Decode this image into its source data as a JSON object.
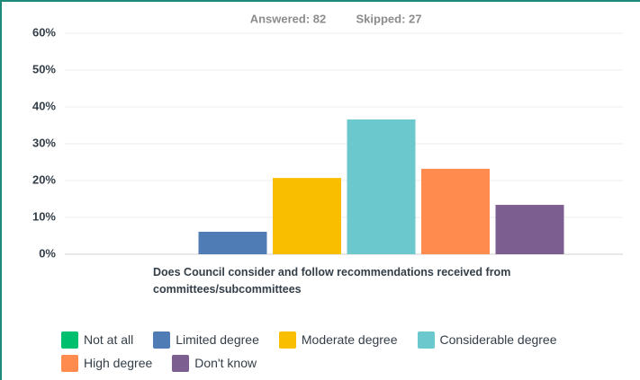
{
  "chart_data": {
    "type": "bar",
    "answered": "Answered: 82",
    "skipped": "Skipped: 27",
    "categories": [
      "Does Council consider and follow recommendations received from committees/subcommittees"
    ],
    "series": [
      {
        "name": "Not at all",
        "color": "#00bf6f",
        "values": [
          0
        ]
      },
      {
        "name": "Limited degree",
        "color": "#507cb6",
        "values": [
          6.1
        ]
      },
      {
        "name": "Moderate degree",
        "color": "#f9be00",
        "values": [
          20.7
        ]
      },
      {
        "name": "Considerable degree",
        "color": "#6bc8cd",
        "values": [
          36.6
        ]
      },
      {
        "name": "High degree",
        "color": "#ff8b4f",
        "values": [
          23.2
        ]
      },
      {
        "name": "Don't know",
        "color": "#7d5e90",
        "values": [
          13.4
        ]
      }
    ],
    "ylim": [
      0,
      60
    ],
    "yticks": [
      {
        "value": 0,
        "label": "0%"
      },
      {
        "value": 10,
        "label": "10%"
      },
      {
        "value": 20,
        "label": "20%"
      },
      {
        "value": 30,
        "label": "30%"
      },
      {
        "value": 40,
        "label": "40%"
      },
      {
        "value": 50,
        "label": "50%"
      },
      {
        "value": 60,
        "label": "60%"
      }
    ],
    "grid": true
  }
}
